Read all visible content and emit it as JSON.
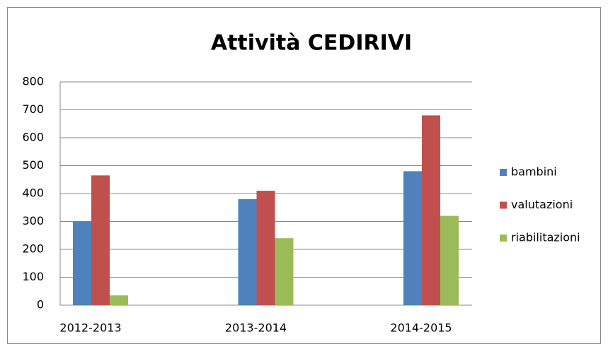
{
  "chart_data": {
    "type": "bar",
    "title": "Attività CEDIRIVI",
    "categories": [
      "2012-2013",
      "2013-2014",
      "2014-2015"
    ],
    "series": [
      {
        "name": "bambini",
        "color": "#4f81bd",
        "values": [
          300,
          380,
          480
        ]
      },
      {
        "name": "valutazioni",
        "color": "#c0504d",
        "values": [
          465,
          410,
          680
        ]
      },
      {
        "name": "riabilitazioni",
        "color": "#9bbb59",
        "values": [
          35,
          240,
          320
        ]
      }
    ],
    "ylim": [
      0,
      800
    ],
    "yticks": [
      0,
      100,
      200,
      300,
      400,
      500,
      600,
      700,
      800
    ],
    "grid": true,
    "legend": "right"
  }
}
